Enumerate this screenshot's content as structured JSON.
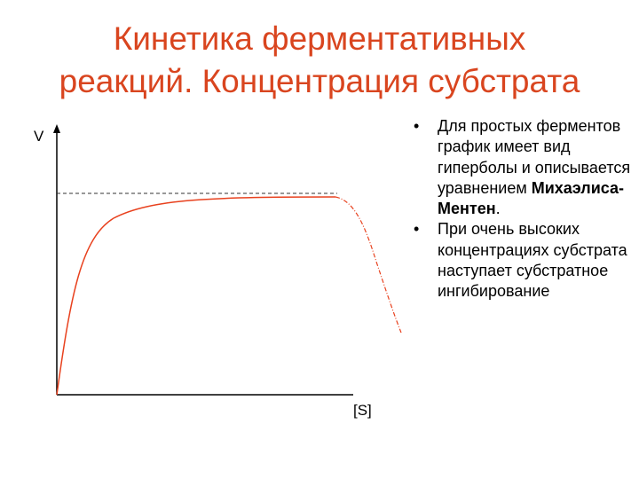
{
  "title": {
    "line1": "Кинетика ферментативных",
    "line2": "реакций. Концентрация субстрата"
  },
  "graph": {
    "y_axis_label": "V",
    "x_axis_label": "[S]",
    "colors": {
      "axis": "#000000",
      "curve": "#e8411e",
      "asymptote": "#333333"
    }
  },
  "bullets": {
    "marker": "•",
    "item1": {
      "text_before": "Для простых ферментов график имеет вид гиперболы и описывается уравнением ",
      "bold": "Михаэлиса-Ментен",
      "text_after": "."
    },
    "item2": {
      "text": "При очень высоких концентрациях субстрата наступает субстратное ингибирование"
    }
  }
}
